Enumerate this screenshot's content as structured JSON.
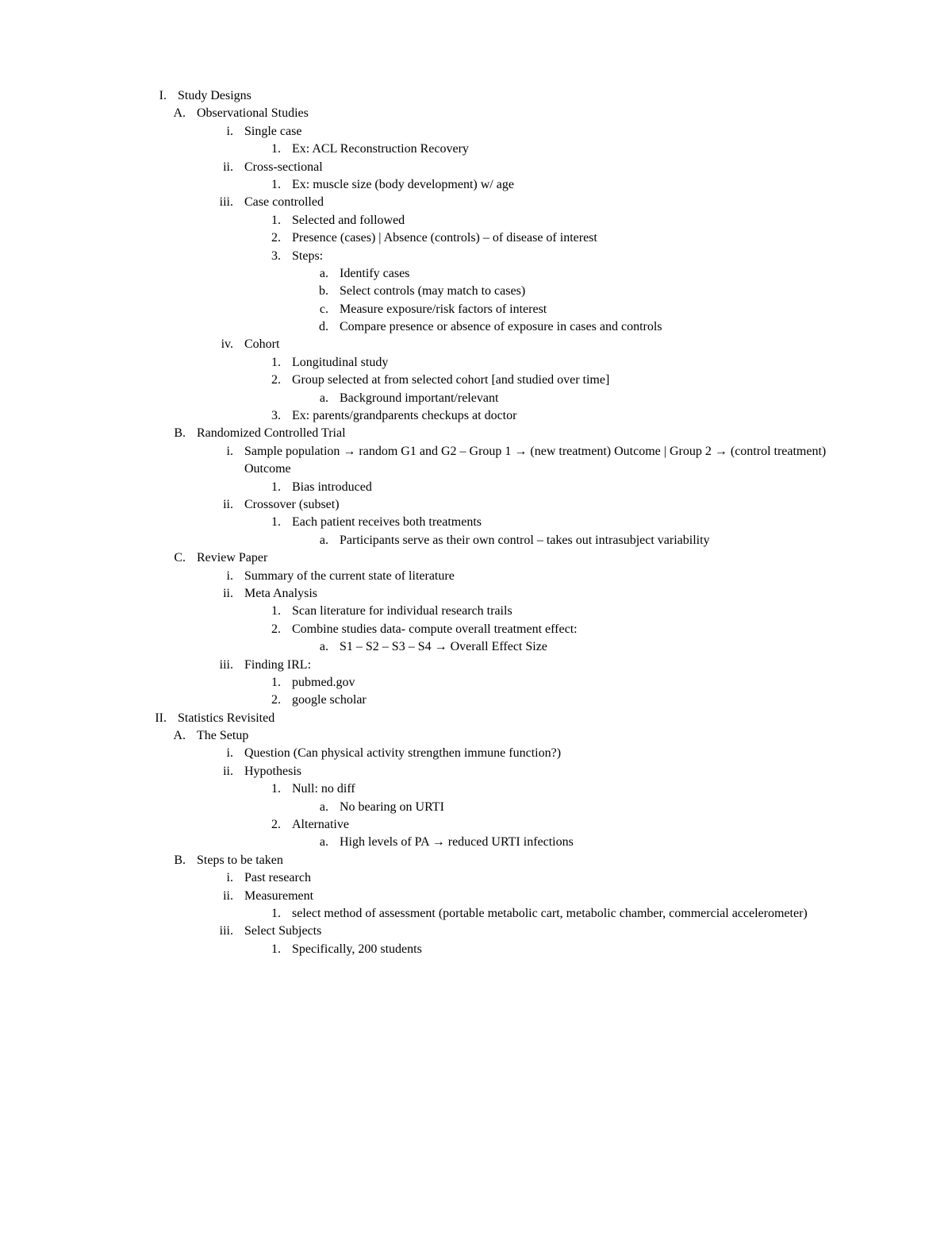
{
  "items": [
    {
      "level": 0,
      "marker": "I.",
      "text": "Study Designs",
      "markerClass": "marker-wide"
    },
    {
      "level": 1,
      "marker": "A.",
      "text": "Observational Studies"
    },
    {
      "level": 2,
      "marker": "i.",
      "text": "Single case"
    },
    {
      "level": 3,
      "marker": "1.",
      "text": "Ex: ACL Reconstruction Recovery"
    },
    {
      "level": 2,
      "marker": "ii.",
      "text": "Cross-sectional"
    },
    {
      "level": 3,
      "marker": "1.",
      "text": "Ex: muscle size (body development) w/ age"
    },
    {
      "level": 2,
      "marker": "iii.",
      "text": "Case controlled"
    },
    {
      "level": 3,
      "marker": "1.",
      "text": "Selected and followed"
    },
    {
      "level": 3,
      "marker": "2.",
      "text": "Presence (cases) | Absence (controls) – of disease of interest"
    },
    {
      "level": 3,
      "marker": "3.",
      "text": "Steps:"
    },
    {
      "level": 4,
      "marker": "a.",
      "text": "Identify cases"
    },
    {
      "level": 4,
      "marker": "b.",
      "text": "Select controls (may match to cases)"
    },
    {
      "level": 4,
      "marker": "c.",
      "text": "Measure exposure/risk factors of interest"
    },
    {
      "level": 4,
      "marker": "d.",
      "text": "Compare presence or absence of exposure in cases and controls"
    },
    {
      "level": 2,
      "marker": "iv.",
      "text": "Cohort"
    },
    {
      "level": 3,
      "marker": "1.",
      "text": "Longitudinal study"
    },
    {
      "level": 3,
      "marker": "2.",
      "text": "Group selected at from selected cohort [and studied over time]"
    },
    {
      "level": 4,
      "marker": "a.",
      "text": "Background important/relevant"
    },
    {
      "level": 3,
      "marker": "3.",
      "text": "Ex: parents/grandparents checkups at doctor"
    },
    {
      "level": 1,
      "marker": "B.",
      "text": "Randomized Controlled Trial"
    },
    {
      "level": 2,
      "marker": "i.",
      "text": "Sample population → random G1 and G2 – Group 1 → (new treatment) Outcome | Group 2 → (control treatment) Outcome"
    },
    {
      "level": 3,
      "marker": "1.",
      "text": "Bias introduced"
    },
    {
      "level": 2,
      "marker": "ii.",
      "text": "Crossover (subset)"
    },
    {
      "level": 3,
      "marker": "1.",
      "text": "Each patient receives both treatments"
    },
    {
      "level": 4,
      "marker": "a.",
      "text": "Participants serve as their own control – takes out intrasubject variability"
    },
    {
      "level": 1,
      "marker": "C.",
      "text": "Review Paper"
    },
    {
      "level": 2,
      "marker": "i.",
      "text": "Summary of the current state of literature"
    },
    {
      "level": 2,
      "marker": "ii.",
      "text": "Meta Analysis"
    },
    {
      "level": 3,
      "marker": "1.",
      "text": "Scan literature for individual research trails"
    },
    {
      "level": 3,
      "marker": "2.",
      "text": "Combine studies data- compute overall treatment effect:"
    },
    {
      "level": 4,
      "marker": "a.",
      "text": "S1 – S2 – S3 – S4 → Overall Effect Size"
    },
    {
      "level": 2,
      "marker": "iii.",
      "text": "Finding IRL:"
    },
    {
      "level": 3,
      "marker": "1.",
      "text": "pubmed.gov"
    },
    {
      "level": 3,
      "marker": "2.",
      "text": "google scholar"
    },
    {
      "level": 0,
      "marker": "II.",
      "text": "Statistics Revisited",
      "markerClass": "marker-wide"
    },
    {
      "level": 1,
      "marker": "A.",
      "text": "The Setup"
    },
    {
      "level": 2,
      "marker": "i.",
      "text": "Question (Can physical activity strengthen immune function?)"
    },
    {
      "level": 2,
      "marker": "ii.",
      "text": "Hypothesis"
    },
    {
      "level": 3,
      "marker": "1.",
      "text": "Null: no diff"
    },
    {
      "level": 4,
      "marker": "a.",
      "text": "No bearing on URTI"
    },
    {
      "level": 3,
      "marker": "2.",
      "text": "Alternative"
    },
    {
      "level": 4,
      "marker": "a.",
      "text": "High levels of PA → reduced URTI infections"
    },
    {
      "level": 1,
      "marker": "B.",
      "text": "Steps to be taken"
    },
    {
      "level": 2,
      "marker": "i.",
      "text": "Past research"
    },
    {
      "level": 2,
      "marker": "ii.",
      "text": "Measurement"
    },
    {
      "level": 3,
      "marker": "1.",
      "text": "select method of assessment (portable metabolic cart, metabolic chamber, commercial accelerometer)"
    },
    {
      "level": 2,
      "marker": "iii.",
      "text": "Select Subjects"
    },
    {
      "level": 3,
      "marker": "1.",
      "text": "Specifically, 200 students"
    }
  ]
}
